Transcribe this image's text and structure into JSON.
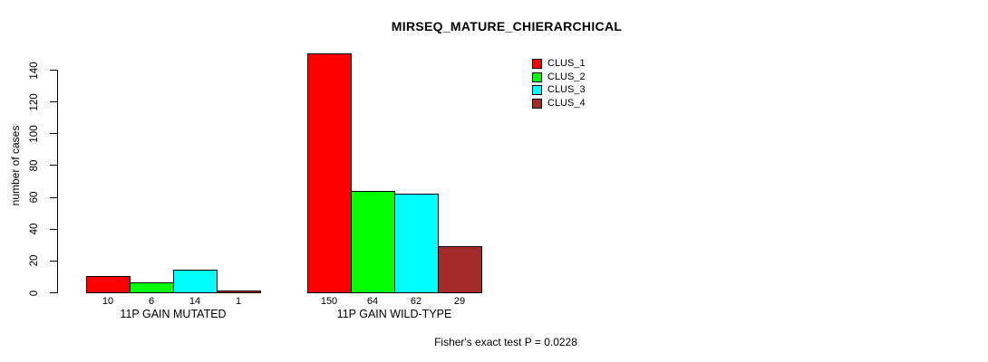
{
  "title": "MIRSEQ_MATURE_CHIERARCHICAL",
  "footer": "Fisher's exact test P = 0.0228",
  "chart_data": {
    "type": "bar",
    "title": "MIRSEQ_MATURE_CHIERARCHICAL",
    "ylabel": "number of cases",
    "xlabel": "",
    "ylim": [
      0,
      150
    ],
    "yticks": [
      0,
      20,
      40,
      60,
      80,
      100,
      120,
      140
    ],
    "grid": false,
    "legend_position": "top-right",
    "bar_value_labels_shown": true,
    "categories": [
      "11P GAIN MUTATED",
      "11P GAIN WILD-TYPE"
    ],
    "series": [
      {
        "name": "CLUS_1",
        "color": "#FF0000",
        "values": [
          10,
          150
        ]
      },
      {
        "name": "CLUS_2",
        "color": "#00FF00",
        "values": [
          6,
          64
        ]
      },
      {
        "name": "CLUS_3",
        "color": "#00FFFF",
        "values": [
          14,
          62
        ]
      },
      {
        "name": "CLUS_4",
        "color": "#A52A2A",
        "values": [
          1,
          29
        ]
      }
    ],
    "annotation": "Fisher's exact test P = 0.0228"
  }
}
